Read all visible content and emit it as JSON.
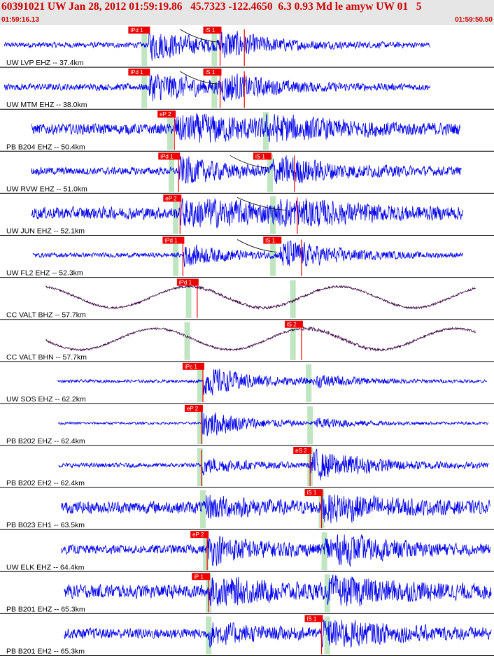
{
  "header": {
    "title": "60391021 UW Jan 28, 2012 01:59:19.86   45.7323 -122.4650  6.3 0.93 Md le amyw UW 01   5",
    "time_start": "01:59:16.13",
    "time_end": "01:59:50.50"
  },
  "colors": {
    "trace": "#0000ee",
    "trace_dark": "#3a0040",
    "pick": "#ee0000",
    "window": "#bfe6c0",
    "header_bg": "#e6e6e6",
    "header_text": "#cc0000"
  },
  "chart_data": {
    "type": "line",
    "title": "60391021 UW Jan 28, 2012 01:59:19.86   45.7323 -122.4650  6.3 0.93 Md le amyw UW 01   5",
    "x_unit": "seconds",
    "x_range": [
      0,
      34.37
    ],
    "x_start_label": "01:59:16.13",
    "x_end_label": "01:59:50.50",
    "grid": false,
    "channels": [
      {
        "label": "UW LVP EHZ -- 37.4km",
        "dark": false,
        "amp": 0.18,
        "noise": 0.18,
        "trace_range": [
          0.2,
          30.0
        ],
        "windows": [
          10.0,
          14.9
        ],
        "picks": [
          {
            "label": "iPd 1",
            "t": 10.3
          },
          {
            "label": "iS 1",
            "t": 15.3
          }
        ],
        "marks": [
          15.3,
          17.0
        ],
        "theory": [
          12.5,
          15.1
        ],
        "events": [
          {
            "t": 10.3,
            "a": 1.0,
            "d": 3.5
          },
          {
            "t": 15.3,
            "a": 0.8,
            "d": 3.0
          }
        ]
      },
      {
        "label": "UW MTM EHZ -- 38.0km",
        "dark": false,
        "amp": 0.22,
        "noise": 0.22,
        "trace_range": [
          0.2,
          30.0
        ],
        "windows": [
          10.0,
          14.9
        ],
        "picks": [
          {
            "label": "iPd 1",
            "t": 10.3
          },
          {
            "label": "iS 1",
            "t": 15.3
          }
        ],
        "marks": [
          15.3,
          17.0
        ],
        "theory": [
          12.5,
          15.1
        ],
        "events": [
          {
            "t": 10.3,
            "a": 1.0,
            "d": 3.5
          },
          {
            "t": 15.3,
            "a": 0.8,
            "d": 3.0
          }
        ]
      },
      {
        "label": "PB B204 EHZ -- 50.4km",
        "dark": false,
        "amp": 0.85,
        "noise": 0.35,
        "trace_range": [
          2.1,
          32.1
        ],
        "windows": [
          11.8,
          18.5
        ],
        "picks": [
          {
            "label": "eP 2",
            "t": 12.1
          }
        ],
        "marks": [
          12.1
        ],
        "theory": null,
        "events": [
          {
            "t": 12.1,
            "a": 1.0,
            "d": 6.0
          },
          {
            "t": 18.5,
            "a": 0.5,
            "d": 4.0
          }
        ]
      },
      {
        "label": "UW RVW EHZ -- 51.0km",
        "dark": false,
        "amp": 0.3,
        "noise": 0.25,
        "trace_range": [
          2.1,
          32.2
        ],
        "windows": [
          11.9,
          18.8
        ],
        "picks": [
          {
            "label": "iPd 1",
            "t": 12.4
          },
          {
            "label": "iS 1",
            "t": 18.8
          }
        ],
        "marks": [
          12.4,
          20.5
        ],
        "theory": [
          16.0,
          18.7
        ],
        "events": [
          {
            "t": 12.4,
            "a": 0.9,
            "d": 3.0
          },
          {
            "t": 18.8,
            "a": 1.0,
            "d": 4.0
          }
        ]
      },
      {
        "label": "UW JUN EHZ -- 52.1km",
        "dark": false,
        "amp": 0.8,
        "noise": 0.4,
        "trace_range": [
          2.1,
          32.3
        ],
        "windows": [
          12.2,
          19.0
        ],
        "picks": [
          {
            "label": "eP 2",
            "t": 12.5
          }
        ],
        "marks": [
          12.5,
          20.7
        ],
        "theory": [
          16.5,
          19.9
        ],
        "events": [
          {
            "t": 12.5,
            "a": 1.0,
            "d": 5.0
          },
          {
            "t": 19.4,
            "a": 0.8,
            "d": 4.0
          }
        ]
      },
      {
        "label": "UW FL2 EHZ -- 52.3km",
        "dark": false,
        "amp": 0.3,
        "noise": 0.15,
        "trace_range": [
          2.2,
          32.3
        ],
        "windows": [
          12.2,
          19.0
        ],
        "picks": [
          {
            "label": "iPd 1",
            "t": 12.7
          },
          {
            "label": "iS 1",
            "t": 19.5
          }
        ],
        "marks": [
          12.7,
          21.0
        ],
        "theory": [
          16.5,
          19.3
        ],
        "events": [
          {
            "t": 12.7,
            "a": 0.7,
            "d": 3.0
          },
          {
            "t": 19.5,
            "a": 1.0,
            "d": 3.5
          }
        ]
      },
      {
        "label": "CC VALT BHZ -- 57.7km",
        "dark": true,
        "amp": 0.6,
        "noise": 0.05,
        "trace_range": [
          3.1,
          33.2
        ],
        "windows": [
          13.1,
          20.4
        ],
        "picks": [
          {
            "label": "iPd 1",
            "t": 13.7
          }
        ],
        "marks": [
          13.7
        ],
        "theory": null,
        "period": 10.5,
        "events": [
          {
            "t": 13.7,
            "a": 0.3,
            "d": 6.0
          }
        ]
      },
      {
        "label": "CC VALT BHN -- 57.7km",
        "dark": true,
        "amp": 0.6,
        "noise": 0.05,
        "trace_range": [
          3.1,
          33.2
        ],
        "windows": [
          13.0,
          20.4
        ],
        "picks": [
          {
            "label": "iS 2",
            "t": 21.0
          }
        ],
        "marks": [
          21.0
        ],
        "theory": null,
        "period": 10.5,
        "events": [
          {
            "t": 21.0,
            "a": 0.3,
            "d": 6.0
          }
        ]
      },
      {
        "label": "UW SOS EHZ -- 62.2km",
        "dark": false,
        "amp": 0.15,
        "noise": 0.1,
        "trace_range": [
          3.9,
          34.0
        ],
        "windows": [
          13.9,
          21.5
        ],
        "picks": [
          {
            "label": "iPc 1",
            "t": 14.1
          }
        ],
        "marks": [
          14.1
        ],
        "theory": null,
        "events": [
          {
            "t": 14.1,
            "a": 1.0,
            "d": 3.5
          },
          {
            "t": 22.0,
            "a": 0.3,
            "d": 3.0
          }
        ]
      },
      {
        "label": "PB B202 EHZ -- 62.4km",
        "dark": false,
        "amp": 0.15,
        "noise": 0.08,
        "trace_range": [
          4.0,
          34.1
        ],
        "windows": [
          13.9,
          21.6
        ],
        "picks": [
          {
            "label": "eP 2",
            "t": 14.0
          }
        ],
        "marks": [
          14.0
        ],
        "theory": null,
        "events": [
          {
            "t": 14.0,
            "a": 1.0,
            "d": 3.0
          },
          {
            "t": 22.0,
            "a": 0.3,
            "d": 3.0
          }
        ]
      },
      {
        "label": "PB B202 EH2 -- 62.4km",
        "dark": false,
        "amp": 0.3,
        "noise": 0.15,
        "trace_range": [
          4.0,
          34.1
        ],
        "windows": [
          13.9,
          21.6
        ],
        "picks": [
          {
            "label": "eS 2",
            "t": 21.6
          }
        ],
        "marks": [
          14.0,
          21.6
        ],
        "theory": null,
        "events": [
          {
            "t": 14.0,
            "a": 0.5,
            "d": 3.0
          },
          {
            "t": 21.6,
            "a": 1.0,
            "d": 4.0
          }
        ]
      },
      {
        "label": "PB B023 EH1 -- 63.5km",
        "dark": false,
        "amp": 0.5,
        "noise": 0.4,
        "trace_range": [
          4.2,
          34.2
        ],
        "windows": [
          14.1,
          22.4
        ],
        "picks": [
          {
            "label": "iS 1",
            "t": 22.4
          }
        ],
        "marks": [
          22.4
        ],
        "theory": null,
        "events": [
          {
            "t": 14.3,
            "a": 0.6,
            "d": 3.0
          },
          {
            "t": 22.4,
            "a": 1.0,
            "d": 3.5
          }
        ]
      },
      {
        "label": "UW ELK EHZ -- 64.4km",
        "dark": false,
        "amp": 0.6,
        "noise": 0.3,
        "trace_range": [
          4.2,
          34.2
        ],
        "windows": [
          14.3,
          22.6
        ],
        "picks": [
          {
            "label": "eP 2",
            "t": 14.4
          }
        ],
        "marks": [
          14.4
        ],
        "theory": null,
        "events": [
          {
            "t": 14.4,
            "a": 0.8,
            "d": 4.0
          },
          {
            "t": 22.6,
            "a": 1.0,
            "d": 4.0
          }
        ]
      },
      {
        "label": "PB B201 EHZ -- 65.3km",
        "dark": false,
        "amp": 0.7,
        "noise": 0.45,
        "trace_range": [
          4.4,
          34.3
        ],
        "windows": [
          14.5,
          22.8
        ],
        "picks": [
          {
            "label": "iP 1",
            "t": 14.5
          }
        ],
        "marks": [
          14.5
        ],
        "theory": null,
        "events": [
          {
            "t": 14.5,
            "a": 0.8,
            "d": 4.0
          },
          {
            "t": 22.8,
            "a": 1.0,
            "d": 4.0
          }
        ]
      },
      {
        "label": "PB B201 EH2 -- 65.3km",
        "dark": false,
        "amp": 0.6,
        "noise": 0.35,
        "trace_range": [
          4.4,
          34.3
        ],
        "windows": [
          14.5,
          22.8
        ],
        "picks": [
          {
            "label": "iS 1",
            "t": 22.4
          }
        ],
        "marks": [
          22.4
        ],
        "theory": null,
        "events": [
          {
            "t": 14.5,
            "a": 0.6,
            "d": 3.0
          },
          {
            "t": 22.4,
            "a": 1.0,
            "d": 4.0
          }
        ]
      }
    ]
  }
}
